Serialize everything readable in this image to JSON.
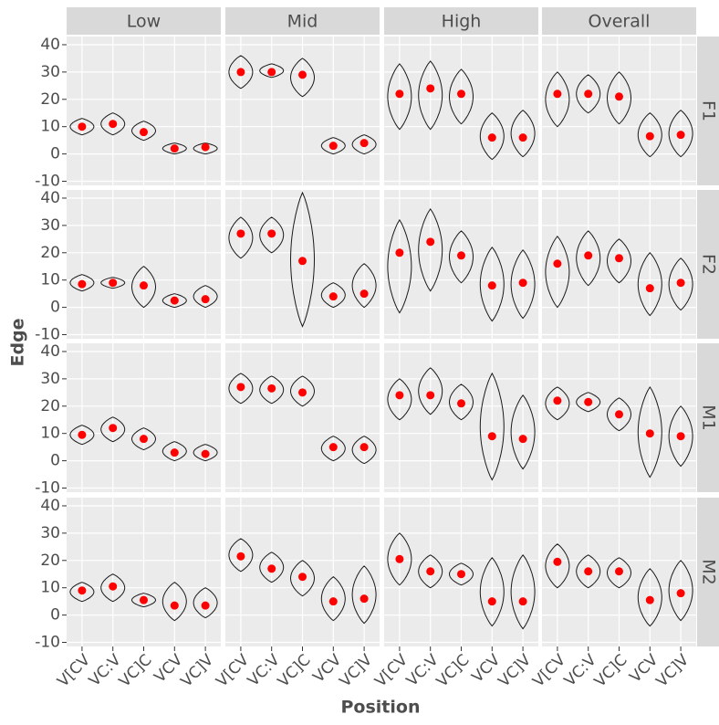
{
  "chart_data": {
    "type": "violin",
    "x_label": "Position",
    "y_label": "Edge",
    "categories": [
      "V[CV",
      "VC:V",
      "VC]C",
      "VCV",
      "VC]V"
    ],
    "facet_cols": [
      "Low",
      "Mid",
      "High",
      "Overall"
    ],
    "facet_rows": [
      "F1",
      "F2",
      "M1",
      "M2"
    ],
    "ylim": [
      -11.5,
      43
    ],
    "yticks": [
      -10,
      0,
      10,
      20,
      30,
      40
    ],
    "grid": true,
    "mean_color": "#ff0000",
    "panels": [
      [
        {
          "mean": [
            10,
            11,
            8,
            2,
            2.5
          ],
          "min": [
            7,
            7,
            5,
            0,
            0
          ],
          "max": [
            13,
            15,
            12,
            4,
            4
          ]
        },
        {
          "mean": [
            30,
            30,
            29,
            3,
            4
          ],
          "min": [
            24,
            28,
            21,
            0,
            0
          ],
          "max": [
            36,
            33,
            35,
            6,
            7
          ]
        },
        {
          "mean": [
            22,
            24,
            22,
            6,
            6
          ],
          "min": [
            9,
            9,
            11,
            -2,
            -1
          ],
          "max": [
            33,
            34,
            31,
            15,
            16
          ]
        },
        {
          "mean": [
            22,
            22,
            21,
            6.5,
            7
          ],
          "min": [
            10,
            15,
            11,
            -1,
            -1
          ],
          "max": [
            30,
            29,
            30,
            15,
            16
          ]
        }
      ],
      [
        {
          "mean": [
            8.5,
            9,
            8,
            2.5,
            3
          ],
          "min": [
            6,
            7,
            0,
            0,
            0
          ],
          "max": [
            12,
            11,
            15,
            5,
            8
          ]
        },
        {
          "mean": [
            27,
            27,
            17,
            4,
            5
          ],
          "min": [
            18,
            20,
            -7,
            0,
            0
          ],
          "max": [
            33,
            33,
            42,
            9,
            16
          ]
        },
        {
          "mean": [
            20,
            24,
            19,
            8,
            9
          ],
          "min": [
            -2,
            6,
            9,
            -5,
            -4
          ],
          "max": [
            32,
            36,
            28,
            22,
            21
          ]
        },
        {
          "mean": [
            16,
            19,
            18,
            7,
            9
          ],
          "min": [
            0,
            8,
            9,
            -3,
            -1
          ],
          "max": [
            26,
            28,
            25,
            20,
            18
          ]
        }
      ],
      [
        {
          "mean": [
            9.5,
            12,
            8,
            3,
            2.5
          ],
          "min": [
            6,
            7,
            4,
            0,
            0
          ],
          "max": [
            13,
            16,
            12,
            7,
            6
          ]
        },
        {
          "mean": [
            27,
            26.5,
            25,
            5,
            5
          ],
          "min": [
            21,
            21,
            20,
            0,
            -1
          ],
          "max": [
            32,
            31,
            31,
            9,
            9
          ]
        },
        {
          "mean": [
            24,
            24,
            21,
            9,
            8
          ],
          "min": [
            15,
            17,
            15,
            -7,
            -3
          ],
          "max": [
            30,
            34,
            28,
            32,
            24
          ]
        },
        {
          "mean": [
            22,
            21.5,
            17,
            10,
            9
          ],
          "min": [
            15,
            18,
            11,
            -6,
            -2
          ],
          "max": [
            27,
            25,
            23,
            27,
            20
          ]
        }
      ],
      [
        {
          "mean": [
            9,
            10.5,
            5.5,
            3.5,
            3.5
          ],
          "min": [
            5,
            5,
            3,
            -2,
            -1
          ],
          "max": [
            12,
            15,
            8,
            12,
            10
          ]
        },
        {
          "mean": [
            21.5,
            17,
            14,
            5,
            6
          ],
          "min": [
            16,
            12,
            7,
            -2,
            -3
          ],
          "max": [
            28,
            23,
            20,
            14,
            18
          ]
        },
        {
          "mean": [
            20.5,
            16,
            15,
            5,
            5
          ],
          "min": [
            11,
            10,
            11,
            -4,
            -5
          ],
          "max": [
            30,
            22,
            19,
            21,
            22
          ]
        },
        {
          "mean": [
            19.5,
            16,
            16,
            5.5,
            8
          ],
          "min": [
            10,
            10,
            10,
            -4,
            -2
          ],
          "max": [
            26,
            22,
            21,
            17,
            20
          ]
        }
      ]
    ]
  }
}
